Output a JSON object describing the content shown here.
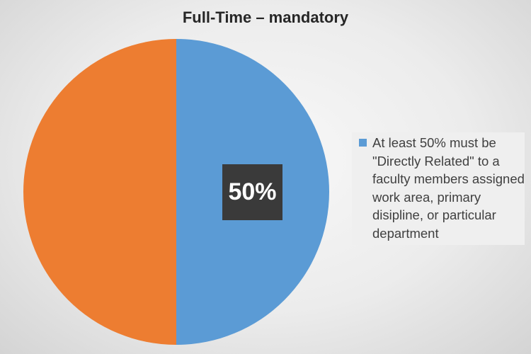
{
  "chart_data": {
    "type": "pie",
    "title": "Full-Time – mandatory",
    "slices": [
      {
        "value": 50,
        "color": "#5b9bd5",
        "label": "50%"
      },
      {
        "value": 50,
        "color": "#ed7d31",
        "label": ""
      }
    ],
    "legend": {
      "placement": "right",
      "entries": [
        {
          "text": "At least 50% must be \"Directly Related\" to a faculty members assigned work area, primary disipline, or particular department",
          "color": "#5b9bd5"
        }
      ]
    }
  }
}
